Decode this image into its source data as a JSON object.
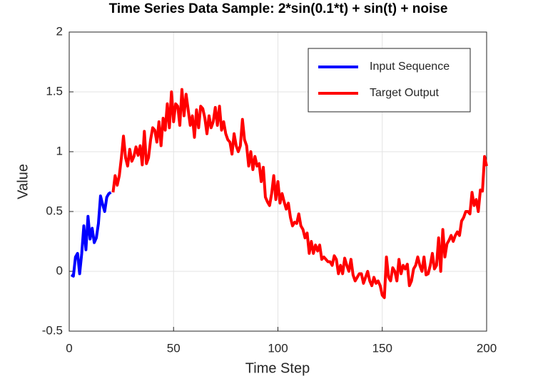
{
  "chart_data": {
    "type": "line",
    "title": "Time Series Data Sample: 2*sin(0.1*t) + sin(t) + noise",
    "x_label": "Time Step",
    "y_label": "Value",
    "xlim": [
      0,
      200
    ],
    "xticks": [
      0,
      50,
      100,
      150,
      200
    ],
    "ylim": [
      -0.5,
      2
    ],
    "yticks": [
      -0.5,
      0,
      0.5,
      1,
      1.5,
      2
    ],
    "grid": true,
    "legend": "upper right",
    "series": [
      {
        "name": "Input Sequence",
        "color": "#0000ff",
        "x": [
          1,
          2,
          3,
          4,
          5,
          6,
          7,
          8,
          9,
          10,
          11,
          12,
          13,
          14,
          15,
          16,
          17,
          18,
          19,
          20
        ],
        "values": [
          -0.03,
          -0.04,
          0.12,
          0.15,
          -0.02,
          0.15,
          0.38,
          0.18,
          0.46,
          0.27,
          0.36,
          0.24,
          0.28,
          0.4,
          0.63,
          0.56,
          0.5,
          0.62,
          0.65,
          0.66
        ]
      },
      {
        "name": "Target Output",
        "color": "#ff0000",
        "x": [
          21,
          22,
          23,
          24,
          25,
          26,
          27,
          28,
          29,
          30,
          31,
          32,
          33,
          34,
          35,
          36,
          37,
          38,
          39,
          40,
          41,
          42,
          43,
          44,
          45,
          46,
          47,
          48,
          49,
          50,
          51,
          52,
          53,
          54,
          55,
          56,
          57,
          58,
          59,
          60,
          61,
          62,
          63,
          64,
          65,
          66,
          67,
          68,
          69,
          70,
          71,
          72,
          73,
          74,
          75,
          76,
          77,
          78,
          79,
          80,
          81,
          82,
          83,
          84,
          85,
          86,
          87,
          88,
          89,
          90,
          91,
          92,
          93,
          94,
          95,
          96,
          97,
          98,
          99,
          100,
          101,
          102,
          103,
          104,
          105,
          106,
          107,
          108,
          109,
          110,
          111,
          112,
          113,
          114,
          115,
          116,
          117,
          118,
          119,
          120,
          121,
          122,
          123,
          124,
          125,
          126,
          127,
          128,
          129,
          130,
          131,
          132,
          133,
          134,
          135,
          136,
          137,
          138,
          139,
          140,
          141,
          142,
          143,
          144,
          145,
          146,
          147,
          148,
          149,
          150,
          151,
          152,
          153,
          154,
          155,
          156,
          157,
          158,
          159,
          160,
          161,
          162,
          163,
          164,
          165,
          166,
          167,
          168,
          169,
          170,
          171,
          172,
          173,
          174,
          175,
          176,
          177,
          178,
          179,
          180,
          181,
          182,
          183,
          184,
          185,
          186,
          187,
          188,
          189,
          190,
          191,
          192,
          193,
          194,
          195,
          196,
          197,
          198,
          199,
          200
        ],
        "values": [
          0.66,
          0.8,
          0.72,
          0.8,
          0.95,
          1.13,
          0.95,
          0.88,
          1.02,
          0.92,
          0.96,
          1.04,
          0.97,
          1.05,
          0.89,
          1.17,
          0.9,
          0.95,
          1.1,
          1.2,
          1.18,
          1.08,
          1.25,
          1.05,
          1.28,
          1.18,
          1.4,
          1.2,
          1.5,
          1.25,
          1.4,
          1.38,
          1.22,
          1.52,
          1.3,
          1.48,
          1.35,
          1.22,
          1.3,
          1.12,
          1.35,
          1.2,
          1.38,
          1.36,
          1.28,
          1.15,
          1.3,
          1.2,
          1.25,
          1.37,
          1.22,
          1.38,
          1.18,
          1.25,
          1.15,
          1.1,
          1.08,
          0.98,
          1.15,
          1.05,
          1.0,
          1.05,
          1.27,
          1.1,
          1.05,
          0.88,
          1.0,
          0.85,
          0.96,
          0.88,
          0.9,
          0.75,
          0.87,
          0.62,
          0.58,
          0.55,
          0.65,
          0.8,
          0.6,
          0.75,
          0.57,
          0.65,
          0.58,
          0.52,
          0.57,
          0.45,
          0.38,
          0.41,
          0.4,
          0.48,
          0.38,
          0.35,
          0.28,
          0.32,
          0.15,
          0.25,
          0.15,
          0.22,
          0.17,
          0.22,
          0.1,
          0.12,
          0.1,
          0.08,
          0.08,
          0.05,
          0.13,
          0.1,
          -0.02,
          0.05,
          -0.02,
          0.11,
          0.05,
          0.0,
          0.1,
          -0.03,
          -0.08,
          -0.05,
          -0.02,
          -0.02,
          -0.1,
          -0.05,
          0.0,
          -0.08,
          -0.12,
          -0.05,
          -0.1,
          -0.08,
          -0.12,
          -0.2,
          -0.22,
          0.12,
          -0.05,
          -0.08,
          0.03,
          0.0,
          -0.08,
          0.1,
          -0.02,
          0.05,
          0.02,
          0.06,
          -0.12,
          -0.08,
          0.02,
          0.05,
          0.12,
          0.05,
          0.0,
          0.12,
          -0.03,
          -0.02,
          0.05,
          0.15,
          0.02,
          0.05,
          0.28,
          0.0,
          0.35,
          0.12,
          0.23,
          0.26,
          0.3,
          0.25,
          0.3,
          0.33,
          0.3,
          0.42,
          0.45,
          0.5,
          0.5,
          0.48,
          0.66,
          0.55,
          0.6,
          0.5,
          0.68,
          0.67,
          0.96,
          0.88
        ]
      }
    ]
  }
}
